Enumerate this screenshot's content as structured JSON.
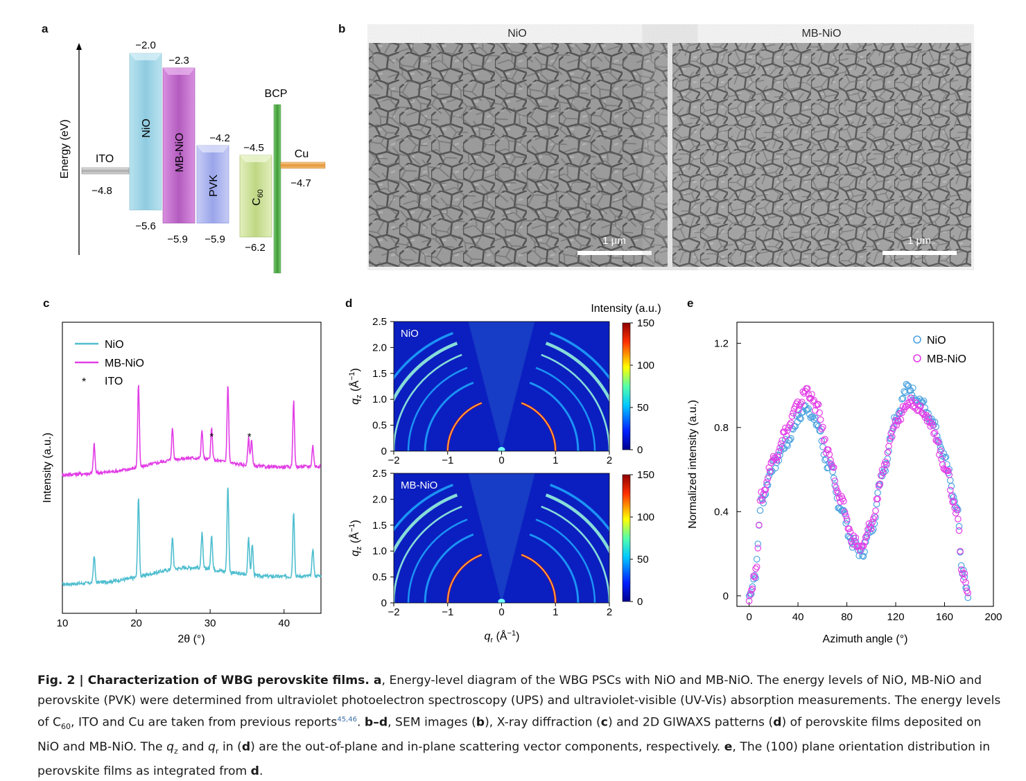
{
  "panel_labels": {
    "a": "a",
    "b": "b",
    "c": "c",
    "d": "d",
    "e": "e"
  },
  "panel_a": {
    "ylabel": "Energy (eV)",
    "layers": [
      {
        "name": "ITO",
        "lumo": "",
        "homo": "−4.8",
        "level": -4.8,
        "color": "#c8c8c8"
      },
      {
        "name": "NiO",
        "lumo": "−2.0",
        "homo": "−5.6",
        "top": -2.0,
        "bottom": -5.6,
        "color": "#9fd3e3"
      },
      {
        "name": "MB-NiO",
        "lumo": "−2.3",
        "homo": "−5.9",
        "top": -2.3,
        "bottom": -5.9,
        "color": "#c06ec9"
      },
      {
        "name": "PVK",
        "lumo": "−4.2",
        "homo": "−5.9",
        "top": -4.2,
        "bottom": -5.9,
        "color": "#a9b3ee"
      },
      {
        "name": "C60",
        "lumo": "−4.5",
        "homo": "−6.2",
        "top": -4.5,
        "bottom": -6.2,
        "color": "#cfe39c"
      },
      {
        "name": "BCP",
        "color": "#55ad4c"
      },
      {
        "name": "Cu",
        "homo": "−4.7",
        "level": -4.7,
        "color": "#f0b25c"
      }
    ]
  },
  "panel_b": {
    "left_title": "NiO",
    "right_title": "MB-NiO",
    "scale_label": "1 μm"
  },
  "chart_data": [
    {
      "type": "line",
      "panel": "c",
      "xlabel": "2θ (°)",
      "ylabel": "Intensity (a.u.)",
      "xlim": [
        10,
        45
      ],
      "xticks": [
        10,
        20,
        30,
        40
      ],
      "legend": [
        "NiO",
        "MB-NiO",
        "ITO"
      ],
      "legend_position": "top-left",
      "ito_marker": "*",
      "ito_peaks": [
        30.2,
        35.3
      ],
      "series": [
        {
          "name": "NiO",
          "color": "#4fbecf",
          "peaks": [
            [
              14.3,
              40
            ],
            [
              20.3,
              115
            ],
            [
              24.9,
              45
            ],
            [
              28.9,
              50
            ],
            [
              30.2,
              50
            ],
            [
              32.4,
              125
            ],
            [
              35.2,
              55
            ],
            [
              35.7,
              45
            ],
            [
              41.3,
              95
            ],
            [
              43.9,
              40
            ]
          ]
        },
        {
          "name": "MB-NiO",
          "color": "#e23ee6",
          "peaks": [
            [
              14.3,
              42
            ],
            [
              20.3,
              118
            ],
            [
              24.9,
              45
            ],
            [
              28.9,
              40
            ],
            [
              30.2,
              45
            ],
            [
              32.4,
              112
            ],
            [
              35.2,
              40
            ],
            [
              35.6,
              38
            ],
            [
              41.3,
              95
            ],
            [
              43.9,
              30
            ]
          ]
        }
      ]
    },
    {
      "type": "heatmap",
      "panel": "d",
      "subplots": [
        "NiO",
        "MB-NiO"
      ],
      "xlabel": "qr (Å−1)",
      "ylabel": "qz (Å−1)",
      "xlim": [
        -2,
        2
      ],
      "ylim": [
        0,
        2.5
      ],
      "xticks": [
        "−2",
        "−1",
        "0",
        "1",
        "2"
      ],
      "yticks": [
        "0",
        "0.5",
        "1.0",
        "1.5",
        "2.0",
        "2.5"
      ],
      "colorbar_label": "Intensity (a.u.)",
      "colorbar_ticks": [
        "0",
        "50",
        "100",
        "150"
      ],
      "colorbar_range": [
        0,
        150
      ],
      "ring_radii": [
        1.0,
        1.42,
        1.73,
        2.0,
        2.24,
        2.45
      ]
    },
    {
      "type": "scatter",
      "panel": "e",
      "xlabel": "Azimuth angle (°)",
      "ylabel": "Normalized intensity (a.u.)",
      "xlim": [
        -10,
        200
      ],
      "ylim": [
        -0.05,
        1.3
      ],
      "xticks": [
        0,
        40,
        80,
        120,
        160,
        200
      ],
      "yticks": [
        "0",
        "0.4",
        "0.8",
        "1.2"
      ],
      "legend_position": "top-right",
      "series": [
        {
          "name": "NiO",
          "color": "#4da3e0",
          "x": [
            0,
            5,
            10,
            20,
            30,
            40,
            47,
            55,
            65,
            75,
            85,
            92,
            100,
            110,
            120,
            130,
            140,
            150,
            160,
            170,
            175,
            180
          ],
          "y": [
            0.0,
            0.1,
            0.45,
            0.62,
            0.72,
            0.84,
            0.9,
            0.82,
            0.62,
            0.42,
            0.25,
            0.2,
            0.32,
            0.6,
            0.85,
            0.99,
            0.93,
            0.82,
            0.65,
            0.42,
            0.1,
            0.0
          ]
        },
        {
          "name": "MB-NiO",
          "color": "#e23ee6",
          "x": [
            0,
            5,
            10,
            20,
            30,
            40,
            47,
            55,
            65,
            75,
            85,
            92,
            100,
            110,
            120,
            130,
            140,
            150,
            160,
            170,
            175,
            180
          ],
          "y": [
            0.0,
            0.1,
            0.47,
            0.65,
            0.78,
            0.9,
            0.98,
            0.9,
            0.68,
            0.45,
            0.27,
            0.22,
            0.34,
            0.6,
            0.82,
            0.93,
            0.9,
            0.8,
            0.62,
            0.4,
            0.1,
            0.0
          ]
        }
      ]
    }
  ],
  "caption": {
    "fig": "Fig. 2 | Characterization of WBG perovskite films.",
    "part1": " a",
    "text1": ", Energy-level diagram of the WBG PSCs with NiO and MB-NiO. The energy levels of NiO, MB-NiO and perovskite (PVK) were determined from ultraviolet photoelectron spectroscopy (UPS) and ultraviolet-visible (UV-Vis) absorption measurements. The energy levels of C",
    "sub60": "60",
    "text2": ", ITO and Cu are taken from previous reports",
    "refs": "45,46",
    "text3": ". ",
    "bd": "b–d",
    "text4": ", SEM images (",
    "b": "b",
    "text5": "), X-ray diffraction (",
    "c": "c",
    "text6": ") and 2D GIWAXS patterns (",
    "d": "d",
    "text7": ") of perovskite films deposited on NiO and MB-NiO. The ",
    "qz": "q",
    "qzsub": "z",
    "text8": " and ",
    "qr": "q",
    "qrsub": "r",
    "text9": " in (",
    "d2": "d",
    "text10": ") are the out-of-plane and in-plane scattering vector components, respectively. ",
    "e": "e",
    "text11": ", The (100) plane orientation distribution in perovskite films as integrated from ",
    "d3": "d",
    "text12": "."
  }
}
